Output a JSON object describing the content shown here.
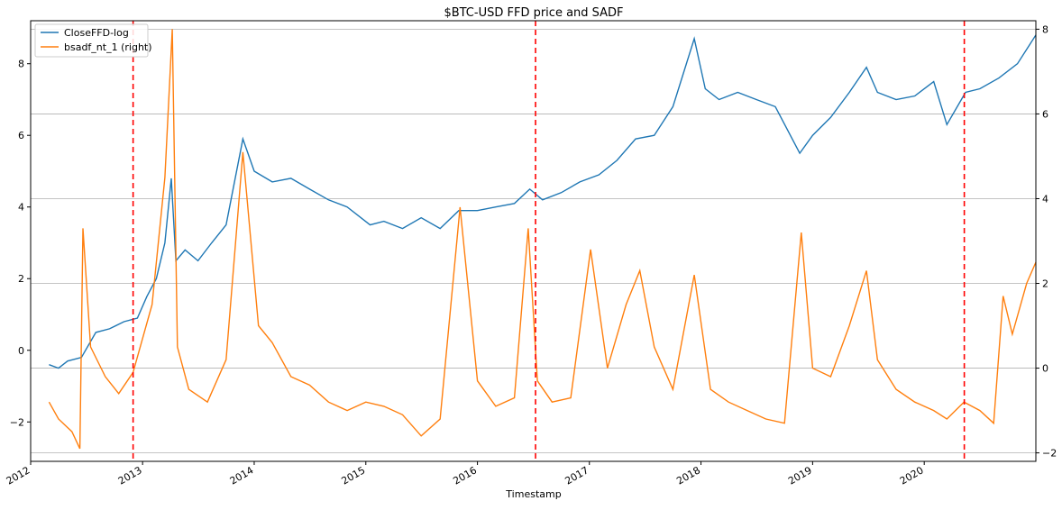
{
  "chart_data": {
    "type": "line",
    "title": "$BTC-USD FFD price and SADF",
    "xlabel": "Timestamp",
    "ylabel": "",
    "ylabel_right": "",
    "xlim": [
      "2012-01-01",
      "2020-12-31"
    ],
    "ylim": [
      -3.1,
      9.2
    ],
    "ylim_right": [
      -2.2,
      8.2
    ],
    "x_ticks": [
      "2012",
      "2013",
      "2014",
      "2015",
      "2016",
      "2017",
      "2018",
      "2019",
      "2020"
    ],
    "y_ticks_left": [
      "−2",
      "0",
      "2",
      "4",
      "6",
      "8"
    ],
    "y_ticks_right": [
      "−2",
      "0",
      "2",
      "4",
      "6",
      "8"
    ],
    "grid": "horizontal lines at right-axis ticks",
    "legend_position": "top-left",
    "colors": {
      "series1": "#1f77b4",
      "series2": "#ff7f0e",
      "events": "#ff0000",
      "grid": "#b0b0b0"
    },
    "event_lines": [
      "2012-12-01",
      "2016-07-09",
      "2020-05-11"
    ],
    "series": [
      {
        "name": "CloseFFD-log",
        "axis": "left",
        "points": [
          [
            "2012-03-01",
            -0.4
          ],
          [
            "2012-04-01",
            -0.5
          ],
          [
            "2012-05-01",
            -0.3
          ],
          [
            "2012-06-15",
            -0.2
          ],
          [
            "2012-08-01",
            0.5
          ],
          [
            "2012-09-15",
            0.6
          ],
          [
            "2012-11-01",
            0.8
          ],
          [
            "2012-12-15",
            0.9
          ],
          [
            "2013-01-15",
            1.5
          ],
          [
            "2013-02-15",
            2.0
          ],
          [
            "2013-03-15",
            3.0
          ],
          [
            "2013-04-05",
            4.8
          ],
          [
            "2013-04-20",
            2.5
          ],
          [
            "2013-05-20",
            2.8
          ],
          [
            "2013-07-01",
            2.5
          ],
          [
            "2013-08-15",
            3.0
          ],
          [
            "2013-10-01",
            3.5
          ],
          [
            "2013-11-25",
            5.9
          ],
          [
            "2014-01-01",
            5.0
          ],
          [
            "2014-03-01",
            4.7
          ],
          [
            "2014-05-01",
            4.8
          ],
          [
            "2014-07-01",
            4.5
          ],
          [
            "2014-09-01",
            4.2
          ],
          [
            "2014-11-01",
            4.0
          ],
          [
            "2015-01-15",
            3.5
          ],
          [
            "2015-03-01",
            3.6
          ],
          [
            "2015-05-01",
            3.4
          ],
          [
            "2015-07-01",
            3.7
          ],
          [
            "2015-09-01",
            3.4
          ],
          [
            "2015-11-01",
            3.9
          ],
          [
            "2016-01-01",
            3.9
          ],
          [
            "2016-03-01",
            4.0
          ],
          [
            "2016-05-01",
            4.1
          ],
          [
            "2016-06-20",
            4.5
          ],
          [
            "2016-08-01",
            4.2
          ],
          [
            "2016-10-01",
            4.4
          ],
          [
            "2016-12-01",
            4.7
          ],
          [
            "2017-02-01",
            4.9
          ],
          [
            "2017-04-01",
            5.3
          ],
          [
            "2017-06-01",
            5.9
          ],
          [
            "2017-08-01",
            6.0
          ],
          [
            "2017-10-01",
            6.8
          ],
          [
            "2017-12-10",
            8.7
          ],
          [
            "2018-01-15",
            7.3
          ],
          [
            "2018-03-01",
            7.0
          ],
          [
            "2018-05-01",
            7.2
          ],
          [
            "2018-07-01",
            7.0
          ],
          [
            "2018-09-01",
            6.8
          ],
          [
            "2018-11-20",
            5.5
          ],
          [
            "2019-01-01",
            6.0
          ],
          [
            "2019-03-01",
            6.5
          ],
          [
            "2019-05-01",
            7.2
          ],
          [
            "2019-06-26",
            7.9
          ],
          [
            "2019-08-01",
            7.2
          ],
          [
            "2019-10-01",
            7.0
          ],
          [
            "2019-12-01",
            7.1
          ],
          [
            "2020-02-01",
            7.5
          ],
          [
            "2020-03-15",
            6.3
          ],
          [
            "2020-05-15",
            7.2
          ],
          [
            "2020-07-01",
            7.3
          ],
          [
            "2020-09-01",
            7.6
          ],
          [
            "2020-11-01",
            8.0
          ],
          [
            "2020-12-31",
            8.8
          ]
        ]
      },
      {
        "name": "bsadf_nt_1 (right)",
        "axis": "right",
        "points": [
          [
            "2012-03-01",
            -0.8
          ],
          [
            "2012-04-01",
            -1.2
          ],
          [
            "2012-05-15",
            -1.5
          ],
          [
            "2012-06-10",
            -1.9
          ],
          [
            "2012-06-20",
            3.3
          ],
          [
            "2012-07-15",
            0.5
          ],
          [
            "2012-09-01",
            -0.2
          ],
          [
            "2012-10-15",
            -0.6
          ],
          [
            "2012-12-01",
            -0.1
          ],
          [
            "2013-02-01",
            1.5
          ],
          [
            "2013-03-15",
            4.5
          ],
          [
            "2013-04-08",
            8.0
          ],
          [
            "2013-04-25",
            0.5
          ],
          [
            "2013-06-01",
            -0.5
          ],
          [
            "2013-08-01",
            -0.8
          ],
          [
            "2013-10-01",
            0.2
          ],
          [
            "2013-11-25",
            5.1
          ],
          [
            "2014-01-15",
            1.0
          ],
          [
            "2014-03-01",
            0.6
          ],
          [
            "2014-05-01",
            -0.2
          ],
          [
            "2014-07-01",
            -0.4
          ],
          [
            "2014-09-01",
            -0.8
          ],
          [
            "2014-11-01",
            -1.0
          ],
          [
            "2015-01-01",
            -0.8
          ],
          [
            "2015-03-01",
            -0.9
          ],
          [
            "2015-05-01",
            -1.1
          ],
          [
            "2015-07-01",
            -1.6
          ],
          [
            "2015-09-01",
            -1.2
          ],
          [
            "2015-11-05",
            3.8
          ],
          [
            "2016-01-01",
            -0.3
          ],
          [
            "2016-03-01",
            -0.9
          ],
          [
            "2016-05-01",
            -0.7
          ],
          [
            "2016-06-15",
            3.3
          ],
          [
            "2016-07-15",
            -0.3
          ],
          [
            "2016-09-01",
            -0.8
          ],
          [
            "2016-11-01",
            -0.7
          ],
          [
            "2017-01-05",
            2.8
          ],
          [
            "2017-03-01",
            0.0
          ],
          [
            "2017-05-01",
            1.5
          ],
          [
            "2017-06-15",
            2.3
          ],
          [
            "2017-08-01",
            0.5
          ],
          [
            "2017-10-01",
            -0.5
          ],
          [
            "2017-12-10",
            2.2
          ],
          [
            "2018-02-01",
            -0.5
          ],
          [
            "2018-04-01",
            -0.8
          ],
          [
            "2018-06-01",
            -1.0
          ],
          [
            "2018-08-01",
            -1.2
          ],
          [
            "2018-10-01",
            -1.3
          ],
          [
            "2018-11-25",
            3.2
          ],
          [
            "2019-01-01",
            0.0
          ],
          [
            "2019-03-01",
            -0.2
          ],
          [
            "2019-05-01",
            1.0
          ],
          [
            "2019-06-26",
            2.3
          ],
          [
            "2019-08-01",
            0.2
          ],
          [
            "2019-10-01",
            -0.5
          ],
          [
            "2019-12-01",
            -0.8
          ],
          [
            "2020-02-01",
            -1.0
          ],
          [
            "2020-03-15",
            -1.2
          ],
          [
            "2020-05-10",
            -0.8
          ],
          [
            "2020-07-01",
            -1.0
          ],
          [
            "2020-08-15",
            -1.3
          ],
          [
            "2020-09-15",
            1.7
          ],
          [
            "2020-10-15",
            0.8
          ],
          [
            "2020-12-01",
            2.0
          ],
          [
            "2020-12-31",
            2.5
          ]
        ]
      }
    ]
  }
}
